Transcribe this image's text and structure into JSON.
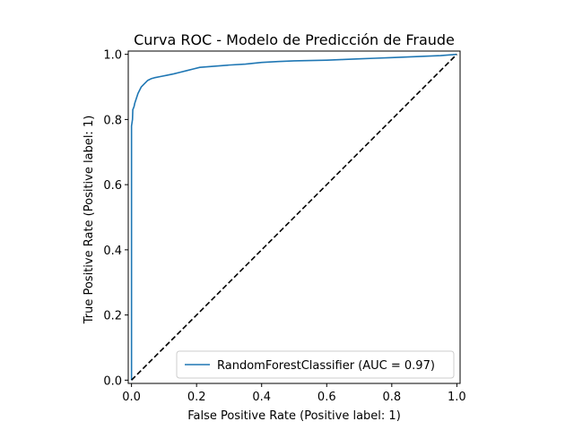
{
  "chart_data": {
    "type": "line",
    "title": "Curva ROC - Modelo de Predicción de Fraude",
    "xlabel": "False Positive Rate (Positive label: 1)",
    "ylabel": "True Positive Rate (Positive label: 1)",
    "xlim": [
      -0.01,
      1.01
    ],
    "ylim": [
      -0.01,
      1.01
    ],
    "xticks": [
      0.0,
      0.2,
      0.4,
      0.6,
      0.8,
      1.0
    ],
    "xtick_labels": [
      "0.0",
      "0.2",
      "0.4",
      "0.6",
      "0.8",
      "1.0"
    ],
    "yticks": [
      0.0,
      0.2,
      0.4,
      0.6,
      0.8,
      1.0
    ],
    "ytick_labels": [
      "0.0",
      "0.2",
      "0.4",
      "0.6",
      "0.8",
      "1.0"
    ],
    "grid": false,
    "legend_position": "lower-right",
    "series": [
      {
        "name": "RandomForestClassifier (AUC = 0.97)",
        "color": "#1f77b4",
        "style": "solid",
        "x": [
          0.0,
          0.0,
          0.003,
          0.004,
          0.006,
          0.008,
          0.01,
          0.015,
          0.02,
          0.025,
          0.03,
          0.035,
          0.04,
          0.05,
          0.06,
          0.07,
          0.09,
          0.11,
          0.13,
          0.15,
          0.17,
          0.19,
          0.21,
          0.25,
          0.3,
          0.35,
          0.4,
          0.45,
          0.5,
          0.55,
          0.6,
          0.65,
          0.7,
          0.75,
          0.8,
          0.85,
          0.9,
          0.95,
          1.0
        ],
        "y": [
          0.0,
          0.78,
          0.8,
          0.83,
          0.835,
          0.84,
          0.85,
          0.865,
          0.88,
          0.89,
          0.9,
          0.905,
          0.91,
          0.92,
          0.925,
          0.928,
          0.932,
          0.936,
          0.94,
          0.945,
          0.95,
          0.955,
          0.96,
          0.963,
          0.967,
          0.97,
          0.975,
          0.978,
          0.98,
          0.981,
          0.982,
          0.984,
          0.986,
          0.988,
          0.99,
          0.992,
          0.994,
          0.996,
          1.0
        ]
      },
      {
        "name": "",
        "color": "#000000",
        "style": "dashed",
        "x": [
          0.0,
          1.0
        ],
        "y": [
          0.0,
          1.0
        ]
      }
    ]
  }
}
